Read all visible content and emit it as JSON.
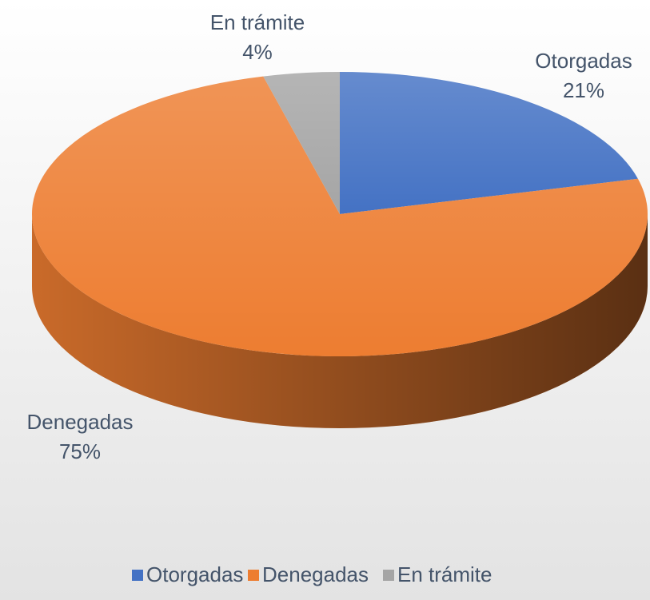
{
  "chart_data": {
    "type": "pie",
    "categories": [
      "Otorgadas",
      "Denegadas",
      "En trámite"
    ],
    "values": [
      21,
      75,
      4
    ],
    "value_labels": [
      "21%",
      "75%",
      "4%"
    ],
    "colors": [
      "#4472c4",
      "#ed7d31",
      "#a5a5a5"
    ],
    "legend": "bottom"
  }
}
